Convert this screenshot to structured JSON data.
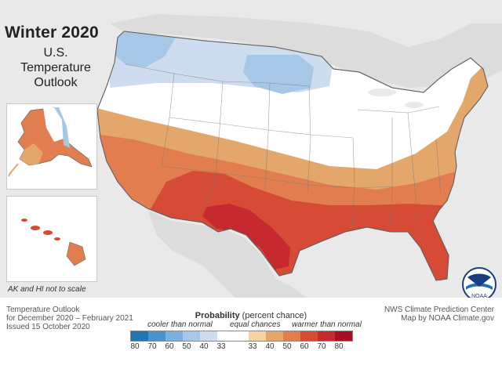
{
  "title": {
    "main": "Winter 2020",
    "line1": "U.S.",
    "line2": "Temperature",
    "line3": "Outlook"
  },
  "inset_note": "AK and HI not to scale",
  "footer": {
    "left1": "Temperature Outlook",
    "left2": "for December 2020 – February 2021",
    "left3": "Issued 15 October 2020",
    "right1": "NWS Climate Prediction Center",
    "right2": "Map by NOAA Climate.gov"
  },
  "legend": {
    "title_bold": "Probability",
    "title_rest": " (percent chance)",
    "cooler": "cooler than normal",
    "equal": "equal chances",
    "warmer": "warmer than normal",
    "cool_colors": [
      "#1f78b4",
      "#4a93cc",
      "#7cb0db",
      "#a7c7e6",
      "#cddcee"
    ],
    "warm_colors": [
      "#f6d4a8",
      "#e3a66b",
      "#e27d4f",
      "#d64b35",
      "#c62a30",
      "#a80f22"
    ],
    "ticks": [
      "80",
      "70",
      "60",
      "50",
      "40",
      "33",
      "33",
      "40",
      "50",
      "60",
      "70",
      "80"
    ]
  },
  "logo_text": "NOAA",
  "colors": {
    "background": "#e9e9e9",
    "equal_chances": "#ffffff",
    "cool_light": "#cddcee",
    "cool_mid": "#a7c7e6",
    "warm_33": "#e3a66b",
    "warm_40": "#e27d4f",
    "warm_50": "#d64b35",
    "warm_60": "#c62a30"
  }
}
